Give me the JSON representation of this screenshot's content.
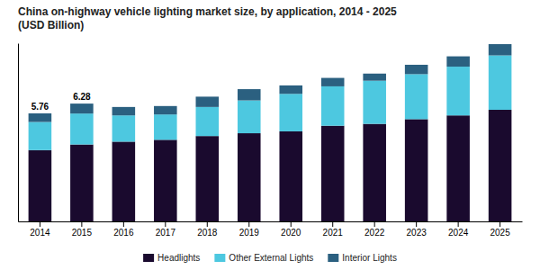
{
  "chart_data": {
    "type": "bar",
    "title": "China on-highway vehicle lighting market size, by application, 2014 - 2025\n(USD Billion)",
    "stacked": true,
    "categories": [
      "2014",
      "2015",
      "2016",
      "2017",
      "2018",
      "2019",
      "2020",
      "2021",
      "2022",
      "2023",
      "2024",
      "2025"
    ],
    "series": [
      {
        "name": "Headlights",
        "color": "#1a0a2e",
        "values": [
          3.8,
          4.1,
          4.25,
          4.35,
          4.55,
          4.7,
          4.8,
          5.1,
          5.2,
          5.45,
          5.65,
          5.95
        ]
      },
      {
        "name": "Other External Lights",
        "color": "#4dc8e0",
        "values": [
          1.5,
          1.65,
          1.4,
          1.35,
          1.55,
          1.75,
          2.0,
          2.1,
          2.3,
          2.4,
          2.6,
          2.9
        ]
      },
      {
        "name": "Interior Lights",
        "color": "#2b6080",
        "values": [
          0.46,
          0.53,
          0.45,
          0.45,
          0.55,
          0.6,
          0.45,
          0.45,
          0.38,
          0.5,
          0.55,
          0.6
        ]
      }
    ],
    "annotations": [
      {
        "text": "5.76",
        "x": "2014",
        "y": 5.76
      },
      {
        "text": "6.28",
        "x": "2015",
        "y": 6.28
      }
    ],
    "ylim": [
      0,
      9.5
    ],
    "tick_labels": "x",
    "grid": false,
    "legend": "bottom"
  }
}
